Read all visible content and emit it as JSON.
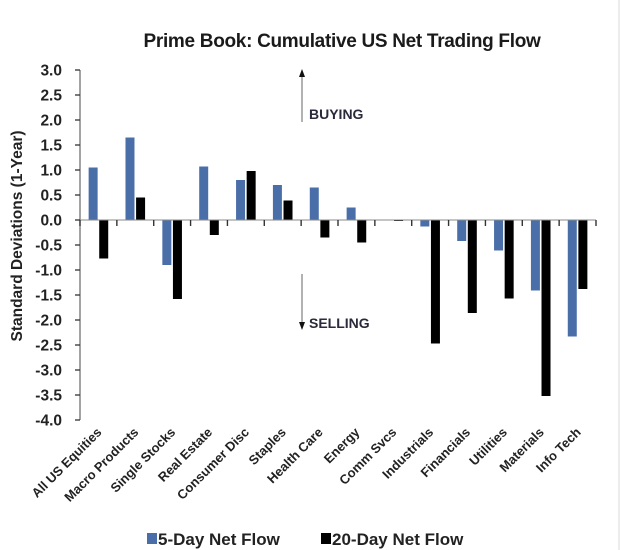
{
  "chart_data": {
    "type": "bar",
    "title": "Prime Book: Cumulative US Net Trading Flow",
    "xlabel": "",
    "ylabel": "Standard Deviations (1-Year)",
    "ylim": [
      -4.0,
      3.0
    ],
    "yticks": [
      "3.0",
      "2.5",
      "2.0",
      "1.5",
      "1.0",
      "0.5",
      "0.0",
      "-0.5",
      "-1.0",
      "-1.5",
      "-2.0",
      "-2.5",
      "-3.0",
      "-3.5",
      "-4.0"
    ],
    "ytick_values": [
      3.0,
      2.5,
      2.0,
      1.5,
      1.0,
      0.5,
      0.0,
      -0.5,
      -1.0,
      -1.5,
      -2.0,
      -2.5,
      -3.0,
      -3.5,
      -4.0
    ],
    "grid": false,
    "categories": [
      "All US Equities",
      "Macro Products",
      "Single Stocks",
      "Real Estate",
      "Consumer Disc",
      "Staples",
      "Health Care",
      "Energy",
      "Comm Svcs",
      "Industrials",
      "Financials",
      "Utilities",
      "Materials",
      "Info Tech"
    ],
    "series": [
      {
        "name": "5-Day Net Flow",
        "color": "#4a6fa8",
        "values": [
          1.05,
          1.65,
          -0.9,
          1.07,
          0.8,
          0.7,
          0.65,
          0.25,
          0.01,
          -0.13,
          -0.42,
          -0.61,
          -1.41,
          -2.33
        ]
      },
      {
        "name": "20-Day Net Flow",
        "color": "#000000",
        "values": [
          -0.77,
          0.45,
          -1.58,
          -0.3,
          0.98,
          0.39,
          -0.35,
          -0.45,
          -0.02,
          -2.47,
          -1.86,
          -1.57,
          -3.52,
          -1.38
        ]
      }
    ],
    "annotations": [
      {
        "text": "BUYING",
        "direction": "up",
        "anchor_value": 2.0
      },
      {
        "text": "SELLING",
        "direction": "down",
        "anchor_value": -2.0
      }
    ],
    "legend": {
      "placement": "bottom-center",
      "entries": [
        "5-Day Net Flow",
        "20-Day Net Flow"
      ]
    }
  }
}
